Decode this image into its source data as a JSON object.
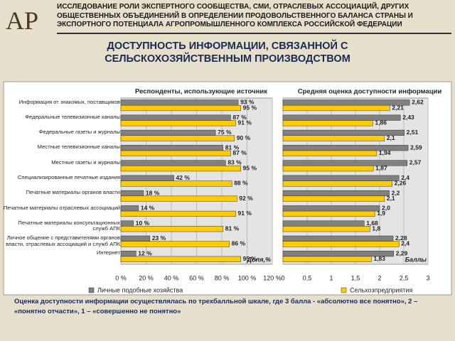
{
  "header": {
    "logo": "АР",
    "text": "ИССЛЕДОВАНИЕ РОЛИ ЭКСПЕРТНОГО СООБЩЕСТВА, СМИ, ОТРАСЛЕВЫХ АССОЦИАЦИЙ, ДРУГИХ ОБЩЕСТВЕННЫХ ОБЪЕДИНЕНИЙ В ОПРЕДЕЛЕНИИ ПРОДОВОЛЬСТВЕННОГО БАЛАНСА СТРАНЫ И ЭКСПОРТНОГО ПОТЕНЦИАЛА АГРОПРОМЫШЛЕННОГО КОМПЛЕКСА РОССИЙСКОЙ ФЕДЕРАЦИИ"
  },
  "title": "ДОСТУПНОСТЬ ИНФОРМАЦИИ, СВЯЗАННОЙ С СЕЛЬСКОХОЗЯЙСТВЕННЫМ ПРОИЗВОДСТВОМ",
  "note": "Оценка доступности информации осуществлялась по трехбалльной шкале, где 3 балла - «абсолютно все понятно», 2 – «понятно отчасти», 1 – «совершенно не понятно»",
  "chart_data": [
    {
      "type": "barh",
      "title": "Респонденты, использующие источник",
      "xlabel": "Доля,%",
      "categories": [
        "Информация от знакомых, поставщиков",
        "Федеральные телевизионные каналы",
        "Федеральные газеты и журналы",
        "Местные телевизионные каналы",
        "Местные газеты и журналы",
        "Специализированные печатные издания",
        "Печатные материалы органов власти",
        "Печатные материалы отраслевых ассоциаций",
        "Печатные материалы консультационных служб АПК",
        "Личное общение с представителями органов власти, отраслевых ассоциаций и служб АПК",
        "Интернет"
      ],
      "series": [
        {
          "name": "Личные подобные хозяйства",
          "color": "#808080",
          "values": [
            93,
            87,
            75,
            81,
            83,
            42,
            18,
            14,
            10,
            23,
            12
          ],
          "value_labels": [
            "93 %",
            "87 %",
            "75 %",
            "81 %",
            "83 %",
            "42 %",
            "18 %",
            "14 %",
            "10 %",
            "23 %",
            "12 %"
          ]
        },
        {
          "name": "Сельхозпредприятия",
          "color": "#ffcc00",
          "values": [
            95,
            91,
            90,
            87,
            95,
            88,
            92,
            91,
            81,
            86,
            95
          ],
          "value_labels": [
            "95 %",
            "91 %",
            "90 %",
            "87 %",
            "95 %",
            "88 %",
            "92 %",
            "91 %",
            "81 %",
            "86 %",
            "95 %"
          ]
        }
      ],
      "xlim": [
        0,
        120
      ],
      "xticks": [
        {
          "value": 0,
          "label": "0 %"
        },
        {
          "value": 20,
          "label": "20 %"
        },
        {
          "value": 40,
          "label": "40 %"
        },
        {
          "value": 60,
          "label": "60 %"
        },
        {
          "value": 80,
          "label": "80 %"
        },
        {
          "value": 100,
          "label": "100 %"
        },
        {
          "value": 120,
          "label": "120 %"
        }
      ],
      "grid": true
    },
    {
      "type": "barh",
      "title": "Средняя оценка доступности информации",
      "xlabel": "Баллы",
      "series": [
        {
          "color": "#808080",
          "values": [
            2.62,
            2.43,
            2.51,
            2.59,
            2.57,
            2.4,
            2.2,
            2.0,
            1.68,
            2.28,
            2.29
          ],
          "value_labels": [
            "2,62",
            "2,43",
            "2,51",
            "2,59",
            "2,57",
            "2,4",
            "2,2",
            "2,0",
            "1,68",
            "2,28",
            "2,29"
          ]
        },
        {
          "color": "#ffcc00",
          "values": [
            2.21,
            1.86,
            2.1,
            1.94,
            1.87,
            2.26,
            2.1,
            1.9,
            1.8,
            2.4,
            1.83
          ],
          "value_labels": [
            "2,21",
            "1,86",
            "2,1",
            "1,94",
            "1,87",
            "2,26",
            "2,1",
            "1,9",
            "1,8",
            "2,4",
            "1,83"
          ]
        }
      ],
      "xlim": [
        0,
        3
      ],
      "xticks": [
        0,
        {
          "value": 0.5,
          "label": "0,5"
        },
        1,
        {
          "value": 1.5,
          "label": "1,5"
        },
        2,
        {
          "value": 2.5,
          "label": "2,5"
        },
        3
      ],
      "grid": true
    }
  ]
}
